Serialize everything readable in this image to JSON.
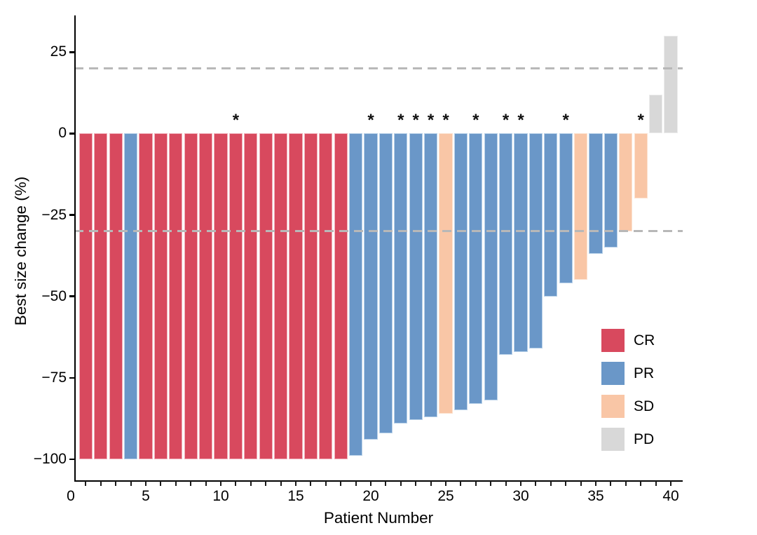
{
  "chart_data": {
    "type": "bar",
    "subtype": "waterfall-best-response",
    "title": "",
    "xlabel": "Patient Number",
    "ylabel": "Best size change (%)",
    "x_range": [
      0,
      40
    ],
    "x_tick_labels": [
      0,
      5,
      10,
      15,
      20,
      25,
      30,
      35,
      40
    ],
    "x_minor_tick_step": 1,
    "ylim": [
      -106,
      38
    ],
    "y_ticks": [
      25,
      0,
      -25,
      -50,
      -75,
      -100
    ],
    "grid": false,
    "marker_symbol": "*",
    "threshold_lines": [
      {
        "value": 20,
        "style": "dashed",
        "color": "#B8B8B8"
      },
      {
        "value": -30,
        "style": "dashed",
        "color": "#B8B8B8"
      }
    ],
    "response_colors": {
      "CR": {
        "fill": "#D8495E",
        "stroke": "#F0AEB9"
      },
      "PR": {
        "fill": "#6A97C8",
        "stroke": "#B7D0E8"
      },
      "SD": {
        "fill": "#F9C6A6",
        "stroke": "#FCE2D0"
      },
      "PD": {
        "fill": "#D8D8D8",
        "stroke": "#ECECEC"
      }
    },
    "legend": {
      "position": "inside-right-lower",
      "entries": [
        {
          "label": "CR",
          "color": "#D8495E"
        },
        {
          "label": "PR",
          "color": "#6A97C8"
        },
        {
          "label": "SD",
          "color": "#F9C6A6"
        },
        {
          "label": "PD",
          "color": "#D8D8D8"
        }
      ]
    },
    "bars": [
      {
        "patient": 1,
        "value": -100,
        "response": "CR",
        "starred": false
      },
      {
        "patient": 2,
        "value": -100,
        "response": "CR",
        "starred": false
      },
      {
        "patient": 3,
        "value": -100,
        "response": "CR",
        "starred": false
      },
      {
        "patient": 4,
        "value": -100,
        "response": "PR",
        "starred": false
      },
      {
        "patient": 5,
        "value": -100,
        "response": "CR",
        "starred": false
      },
      {
        "patient": 6,
        "value": -100,
        "response": "CR",
        "starred": false
      },
      {
        "patient": 7,
        "value": -100,
        "response": "CR",
        "starred": false
      },
      {
        "patient": 8,
        "value": -100,
        "response": "CR",
        "starred": false
      },
      {
        "patient": 9,
        "value": -100,
        "response": "CR",
        "starred": false
      },
      {
        "patient": 10,
        "value": -100,
        "response": "CR",
        "starred": false
      },
      {
        "patient": 11,
        "value": -100,
        "response": "CR",
        "starred": true
      },
      {
        "patient": 12,
        "value": -100,
        "response": "CR",
        "starred": false
      },
      {
        "patient": 13,
        "value": -100,
        "response": "CR",
        "starred": false
      },
      {
        "patient": 14,
        "value": -100,
        "response": "CR",
        "starred": false
      },
      {
        "patient": 15,
        "value": -100,
        "response": "CR",
        "starred": false
      },
      {
        "patient": 16,
        "value": -100,
        "response": "CR",
        "starred": false
      },
      {
        "patient": 17,
        "value": -100,
        "response": "CR",
        "starred": false
      },
      {
        "patient": 18,
        "value": -100,
        "response": "CR",
        "starred": false
      },
      {
        "patient": 19,
        "value": -99,
        "response": "PR",
        "starred": false
      },
      {
        "patient": 20,
        "value": -94,
        "response": "PR",
        "starred": true
      },
      {
        "patient": 21,
        "value": -92,
        "response": "PR",
        "starred": false
      },
      {
        "patient": 22,
        "value": -89,
        "response": "PR",
        "starred": true
      },
      {
        "patient": 23,
        "value": -88,
        "response": "PR",
        "starred": true
      },
      {
        "patient": 24,
        "value": -87,
        "response": "PR",
        "starred": true
      },
      {
        "patient": 25,
        "value": -86,
        "response": "SD",
        "starred": true
      },
      {
        "patient": 26,
        "value": -85,
        "response": "PR",
        "starred": false
      },
      {
        "patient": 27,
        "value": -83,
        "response": "PR",
        "starred": true
      },
      {
        "patient": 28,
        "value": -82,
        "response": "PR",
        "starred": false
      },
      {
        "patient": 29,
        "value": -68,
        "response": "PR",
        "starred": true
      },
      {
        "patient": 30,
        "value": -67,
        "response": "PR",
        "starred": true
      },
      {
        "patient": 31,
        "value": -66,
        "response": "PR",
        "starred": false
      },
      {
        "patient": 32,
        "value": -50,
        "response": "PR",
        "starred": false
      },
      {
        "patient": 33,
        "value": -46,
        "response": "PR",
        "starred": true
      },
      {
        "patient": 34,
        "value": -45,
        "response": "SD",
        "starred": false
      },
      {
        "patient": 35,
        "value": -37,
        "response": "PR",
        "starred": false
      },
      {
        "patient": 36,
        "value": -35,
        "response": "PR",
        "starred": false
      },
      {
        "patient": 37,
        "value": -30,
        "response": "SD",
        "starred": false
      },
      {
        "patient": 38,
        "value": -20,
        "response": "SD",
        "starred": true
      },
      {
        "patient": 39,
        "value": 12,
        "response": "PD",
        "starred": false
      },
      {
        "patient": 40,
        "value": 30,
        "response": "PD",
        "starred": false
      }
    ]
  }
}
